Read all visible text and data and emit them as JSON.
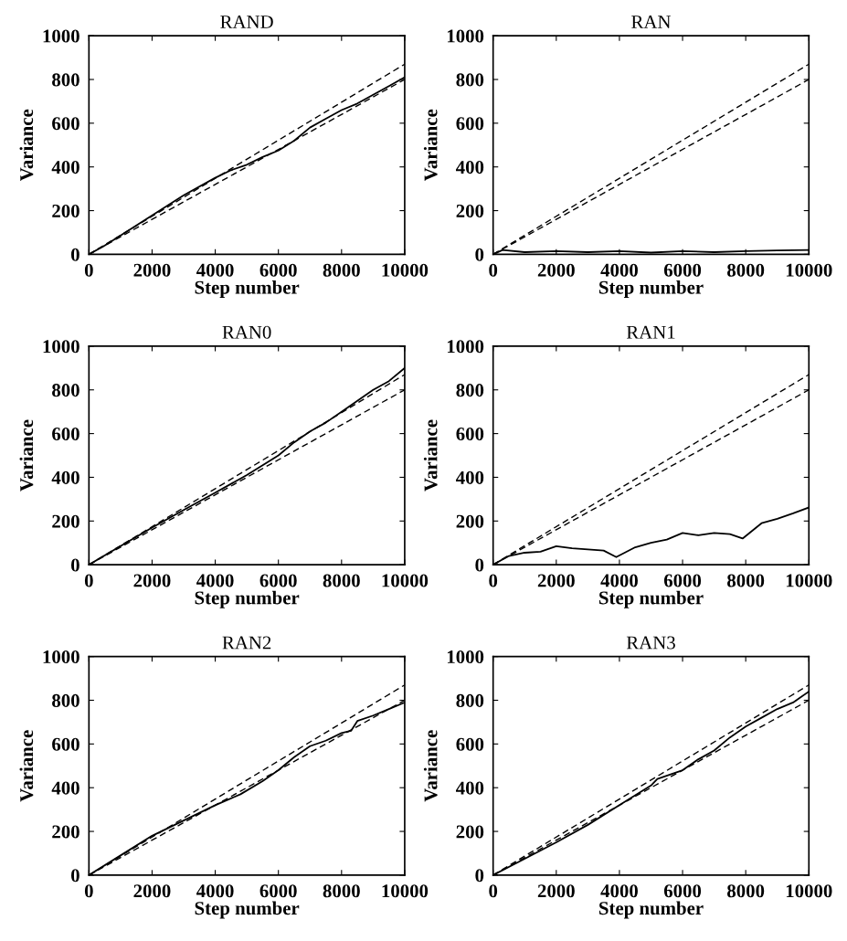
{
  "chart_data": [
    {
      "type": "line",
      "title": "RAND",
      "xlabel": "Step number",
      "ylabel": "Variance",
      "xlim": [
        0,
        10000
      ],
      "ylim": [
        0,
        1000
      ],
      "xticks": [
        0,
        2000,
        4000,
        6000,
        8000,
        10000
      ],
      "yticks": [
        0,
        200,
        400,
        600,
        800,
        1000
      ],
      "series": [
        {
          "color": "#000000",
          "line_style": "solid",
          "x": [
            0,
            500,
            3000,
            4000,
            4500,
            5000,
            5500,
            6000,
            6500,
            7000,
            7500,
            8000,
            8500,
            9000,
            9500,
            10000
          ],
          "values": [
            0,
            40,
            270,
            350,
            385,
            410,
            445,
            475,
            520,
            580,
            620,
            660,
            690,
            730,
            770,
            810
          ]
        },
        {
          "color": "#000000",
          "line_style": "dashed",
          "x": [
            0,
            10000
          ],
          "values": [
            0,
            870
          ]
        },
        {
          "color": "#000000",
          "line_style": "dashed",
          "x": [
            0,
            10000
          ],
          "values": [
            0,
            800
          ]
        }
      ]
    },
    {
      "type": "line",
      "title": "RAN",
      "xlabel": "Step number",
      "ylabel": "Variance",
      "xlim": [
        0,
        10000
      ],
      "ylim": [
        0,
        1000
      ],
      "xticks": [
        0,
        2000,
        4000,
        6000,
        8000,
        10000
      ],
      "yticks": [
        0,
        200,
        400,
        600,
        800,
        1000
      ],
      "series": [
        {
          "color": "#000000",
          "line_style": "solid",
          "x": [
            0,
            300,
            1000,
            2000,
            3000,
            4000,
            5000,
            6000,
            7000,
            8000,
            9000,
            10000
          ],
          "values": [
            0,
            20,
            10,
            15,
            10,
            15,
            8,
            15,
            10,
            15,
            18,
            20
          ]
        },
        {
          "color": "#000000",
          "line_style": "dashed",
          "x": [
            0,
            10000
          ],
          "values": [
            0,
            870
          ]
        },
        {
          "color": "#000000",
          "line_style": "dashed",
          "x": [
            0,
            10000
          ],
          "values": [
            0,
            800
          ]
        }
      ]
    },
    {
      "type": "line",
      "title": "RAN0",
      "xlabel": "Step number",
      "ylabel": "Variance",
      "xlim": [
        0,
        10000
      ],
      "ylim": [
        0,
        1000
      ],
      "xticks": [
        0,
        2000,
        4000,
        6000,
        8000,
        10000
      ],
      "yticks": [
        0,
        200,
        400,
        600,
        800,
        1000
      ],
      "series": [
        {
          "color": "#000000",
          "line_style": "solid",
          "x": [
            0,
            1000,
            2000,
            3000,
            4000,
            5000,
            6000,
            6500,
            7000,
            7500,
            8000,
            8500,
            9000,
            9500,
            10000
          ],
          "values": [
            0,
            85,
            170,
            250,
            330,
            410,
            500,
            560,
            610,
            650,
            700,
            750,
            800,
            840,
            900
          ]
        },
        {
          "color": "#000000",
          "line_style": "dashed",
          "x": [
            0,
            10000
          ],
          "values": [
            0,
            870
          ]
        },
        {
          "color": "#000000",
          "line_style": "dashed",
          "x": [
            0,
            10000
          ],
          "values": [
            0,
            800
          ]
        }
      ]
    },
    {
      "type": "line",
      "title": "RAN1",
      "xlabel": "Step number",
      "ylabel": "Variance",
      "xlim": [
        0,
        10000
      ],
      "ylim": [
        0,
        1000
      ],
      "xticks": [
        0,
        2000,
        4000,
        6000,
        8000,
        10000
      ],
      "yticks": [
        0,
        200,
        400,
        600,
        800,
        1000
      ],
      "series": [
        {
          "color": "#000000",
          "line_style": "solid",
          "x": [
            0,
            500,
            1000,
            1500,
            2000,
            2500,
            3000,
            3500,
            3900,
            4500,
            5000,
            5500,
            6000,
            6500,
            7000,
            7500,
            7900,
            8500,
            9000,
            9500,
            10000
          ],
          "values": [
            0,
            40,
            55,
            60,
            85,
            75,
            70,
            65,
            35,
            80,
            100,
            115,
            145,
            135,
            145,
            140,
            120,
            190,
            210,
            235,
            262
          ]
        },
        {
          "color": "#000000",
          "line_style": "dashed",
          "x": [
            0,
            10000
          ],
          "values": [
            0,
            870
          ]
        },
        {
          "color": "#000000",
          "line_style": "dashed",
          "x": [
            0,
            10000
          ],
          "values": [
            0,
            800
          ]
        }
      ]
    },
    {
      "type": "line",
      "title": "RAN2",
      "xlabel": "Step number",
      "ylabel": "Variance",
      "xlim": [
        0,
        10000
      ],
      "ylim": [
        0,
        1000
      ],
      "xticks": [
        0,
        2000,
        4000,
        6000,
        8000,
        10000
      ],
      "yticks": [
        0,
        200,
        400,
        600,
        800,
        1000
      ],
      "series": [
        {
          "color": "#000000",
          "line_style": "solid",
          "x": [
            0,
            1000,
            2000,
            3000,
            4000,
            4800,
            5500,
            6000,
            6500,
            7000,
            7500,
            8000,
            8300,
            8500,
            9000,
            9500,
            10000
          ],
          "values": [
            0,
            90,
            180,
            250,
            320,
            370,
            430,
            480,
            540,
            590,
            615,
            650,
            660,
            705,
            730,
            760,
            790
          ]
        },
        {
          "color": "#000000",
          "line_style": "dashed",
          "x": [
            0,
            10000
          ],
          "values": [
            0,
            870
          ]
        },
        {
          "color": "#000000",
          "line_style": "dashed",
          "x": [
            0,
            10000
          ],
          "values": [
            0,
            800
          ]
        }
      ]
    },
    {
      "type": "line",
      "title": "RAN3",
      "xlabel": "Step number",
      "ylabel": "Variance",
      "xlim": [
        0,
        10000
      ],
      "ylim": [
        0,
        1000
      ],
      "xticks": [
        0,
        2000,
        4000,
        6000,
        8000,
        10000
      ],
      "yticks": [
        0,
        200,
        400,
        600,
        800,
        1000
      ],
      "series": [
        {
          "color": "#000000",
          "line_style": "solid",
          "x": [
            0,
            1000,
            2000,
            3000,
            4000,
            4500,
            5000,
            5200,
            5600,
            6000,
            6500,
            7000,
            7500,
            8000,
            8500,
            9000,
            9500,
            10000
          ],
          "values": [
            0,
            75,
            150,
            230,
            320,
            365,
            410,
            440,
            460,
            480,
            530,
            570,
            630,
            680,
            720,
            760,
            790,
            840
          ]
        },
        {
          "color": "#000000",
          "line_style": "dashed",
          "x": [
            0,
            10000
          ],
          "values": [
            0,
            870
          ]
        },
        {
          "color": "#000000",
          "line_style": "dashed",
          "x": [
            0,
            10000
          ],
          "values": [
            0,
            800
          ]
        }
      ]
    }
  ]
}
